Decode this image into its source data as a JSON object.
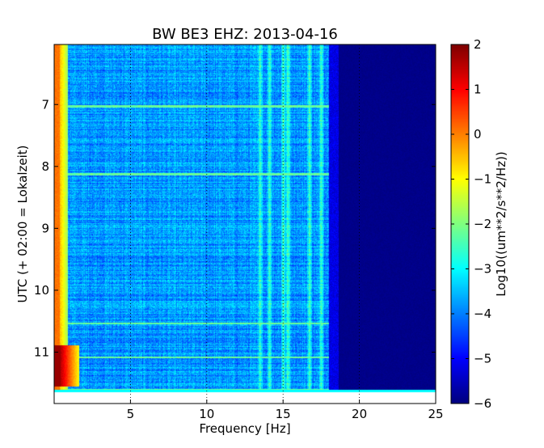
{
  "chart_data": {
    "type": "heatmap",
    "title": "BW BE3 EHZ: 2013-04-16",
    "xlabel": "Frequency [Hz]",
    "ylabel": "UTC (+ 02:00 = Lokalzeit)",
    "x_ticks": [
      5,
      10,
      15,
      20,
      25
    ],
    "x_range": [
      0,
      25
    ],
    "y_ticks": [
      7,
      8,
      9,
      10,
      11
    ],
    "y_range": [
      6.03,
      11.83
    ],
    "y_inverted": true,
    "colorbar": {
      "label": "Log10((um**2/s**2/Hz))",
      "ticks": [
        2,
        1,
        0,
        -1,
        -2,
        -3,
        -4,
        -5,
        -6
      ],
      "range": [
        -6,
        2
      ],
      "colormap": "jet"
    },
    "grid": "x dotted",
    "features": {
      "low_freq_band_hz": [
        0.1,
        0.6
      ],
      "low_freq_level": 0.3,
      "noise_floor_level": -3.8,
      "cutoff_freq_hz": 18.0,
      "above_cutoff_level": -6,
      "persistent_lines_hz": [
        13.5,
        14.1,
        15.0,
        15.3,
        16.7,
        17.5
      ],
      "broadband_bursts_utc": [
        7.02,
        8.12,
        10.53,
        11.08,
        11.6
      ],
      "high_energy_event_utc": [
        10.88,
        11.55
      ]
    }
  }
}
